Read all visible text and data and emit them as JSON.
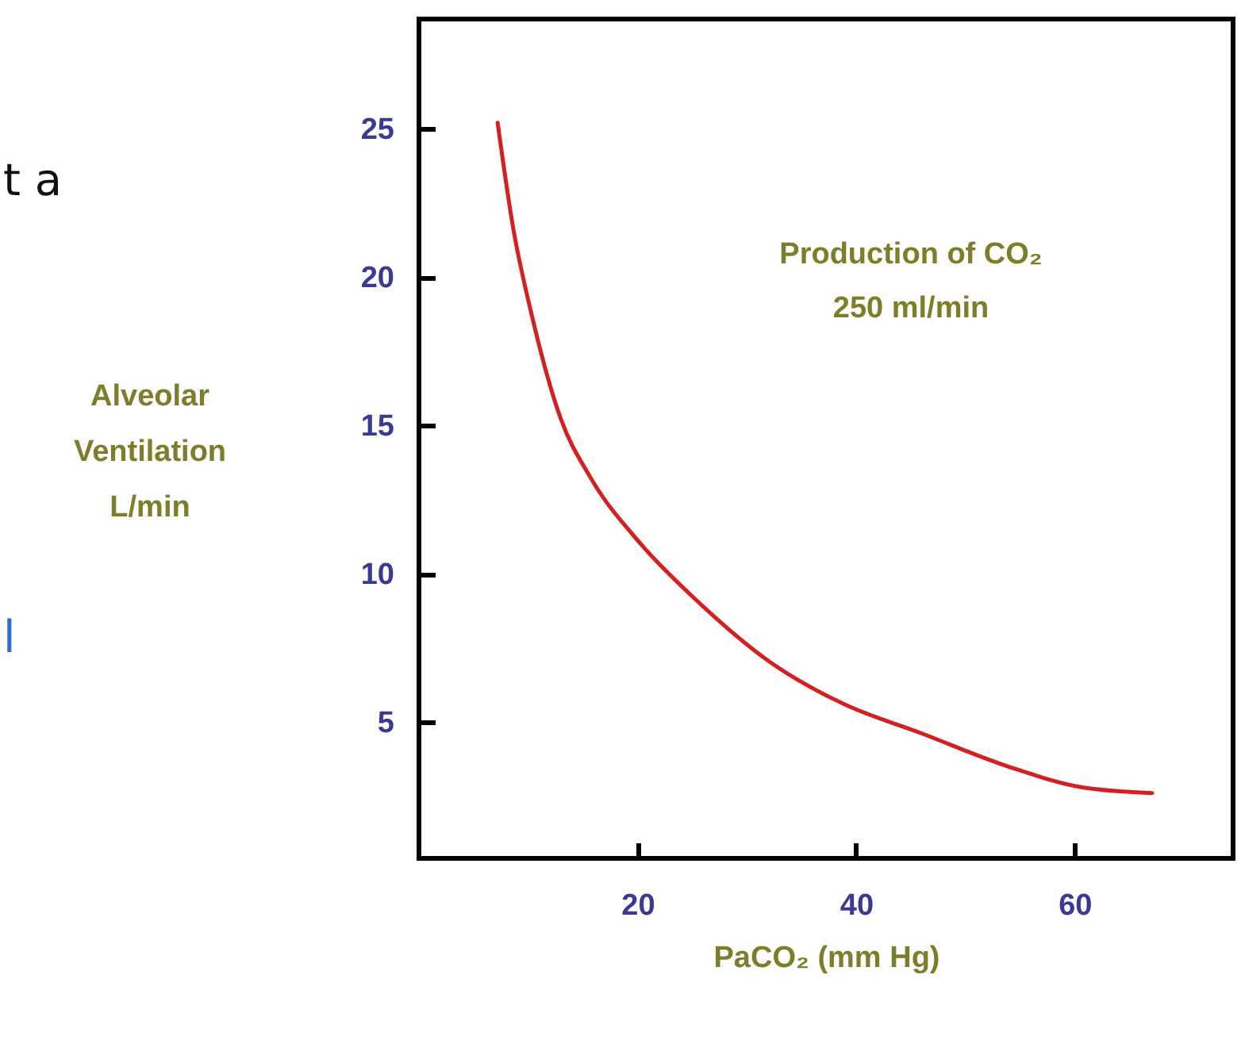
{
  "chart_data": {
    "type": "line",
    "xlabel": "PaCO₂ (mm Hg)",
    "ylabel": "Alveolar Ventilation L/min",
    "annotations": [
      "Production of CO₂",
      "250 ml/min",
      "t a",
      "l"
    ],
    "x": [
      7.2,
      8.6,
      10.4,
      13.0,
      15.6,
      20.3,
      25.4,
      32.2,
      38.9,
      46.1,
      53.9,
      60.6,
      67.1
    ],
    "series": [
      {
        "color": "#d42020",
        "values": [
          25.2,
          21.7,
          18.6,
          15.2,
          13.3,
          11.0,
          9.1,
          7.0,
          5.6,
          4.6,
          3.5,
          2.8,
          2.6
        ]
      }
    ],
    "xlim": [
      0,
      74.5
    ],
    "xticks": [
      20,
      40,
      60
    ],
    "ylim": [
      0.4,
      28.7
    ],
    "yticks": [
      5,
      10,
      15,
      20,
      25
    ],
    "grid": false,
    "marker": "none",
    "line_style": "solid"
  }
}
